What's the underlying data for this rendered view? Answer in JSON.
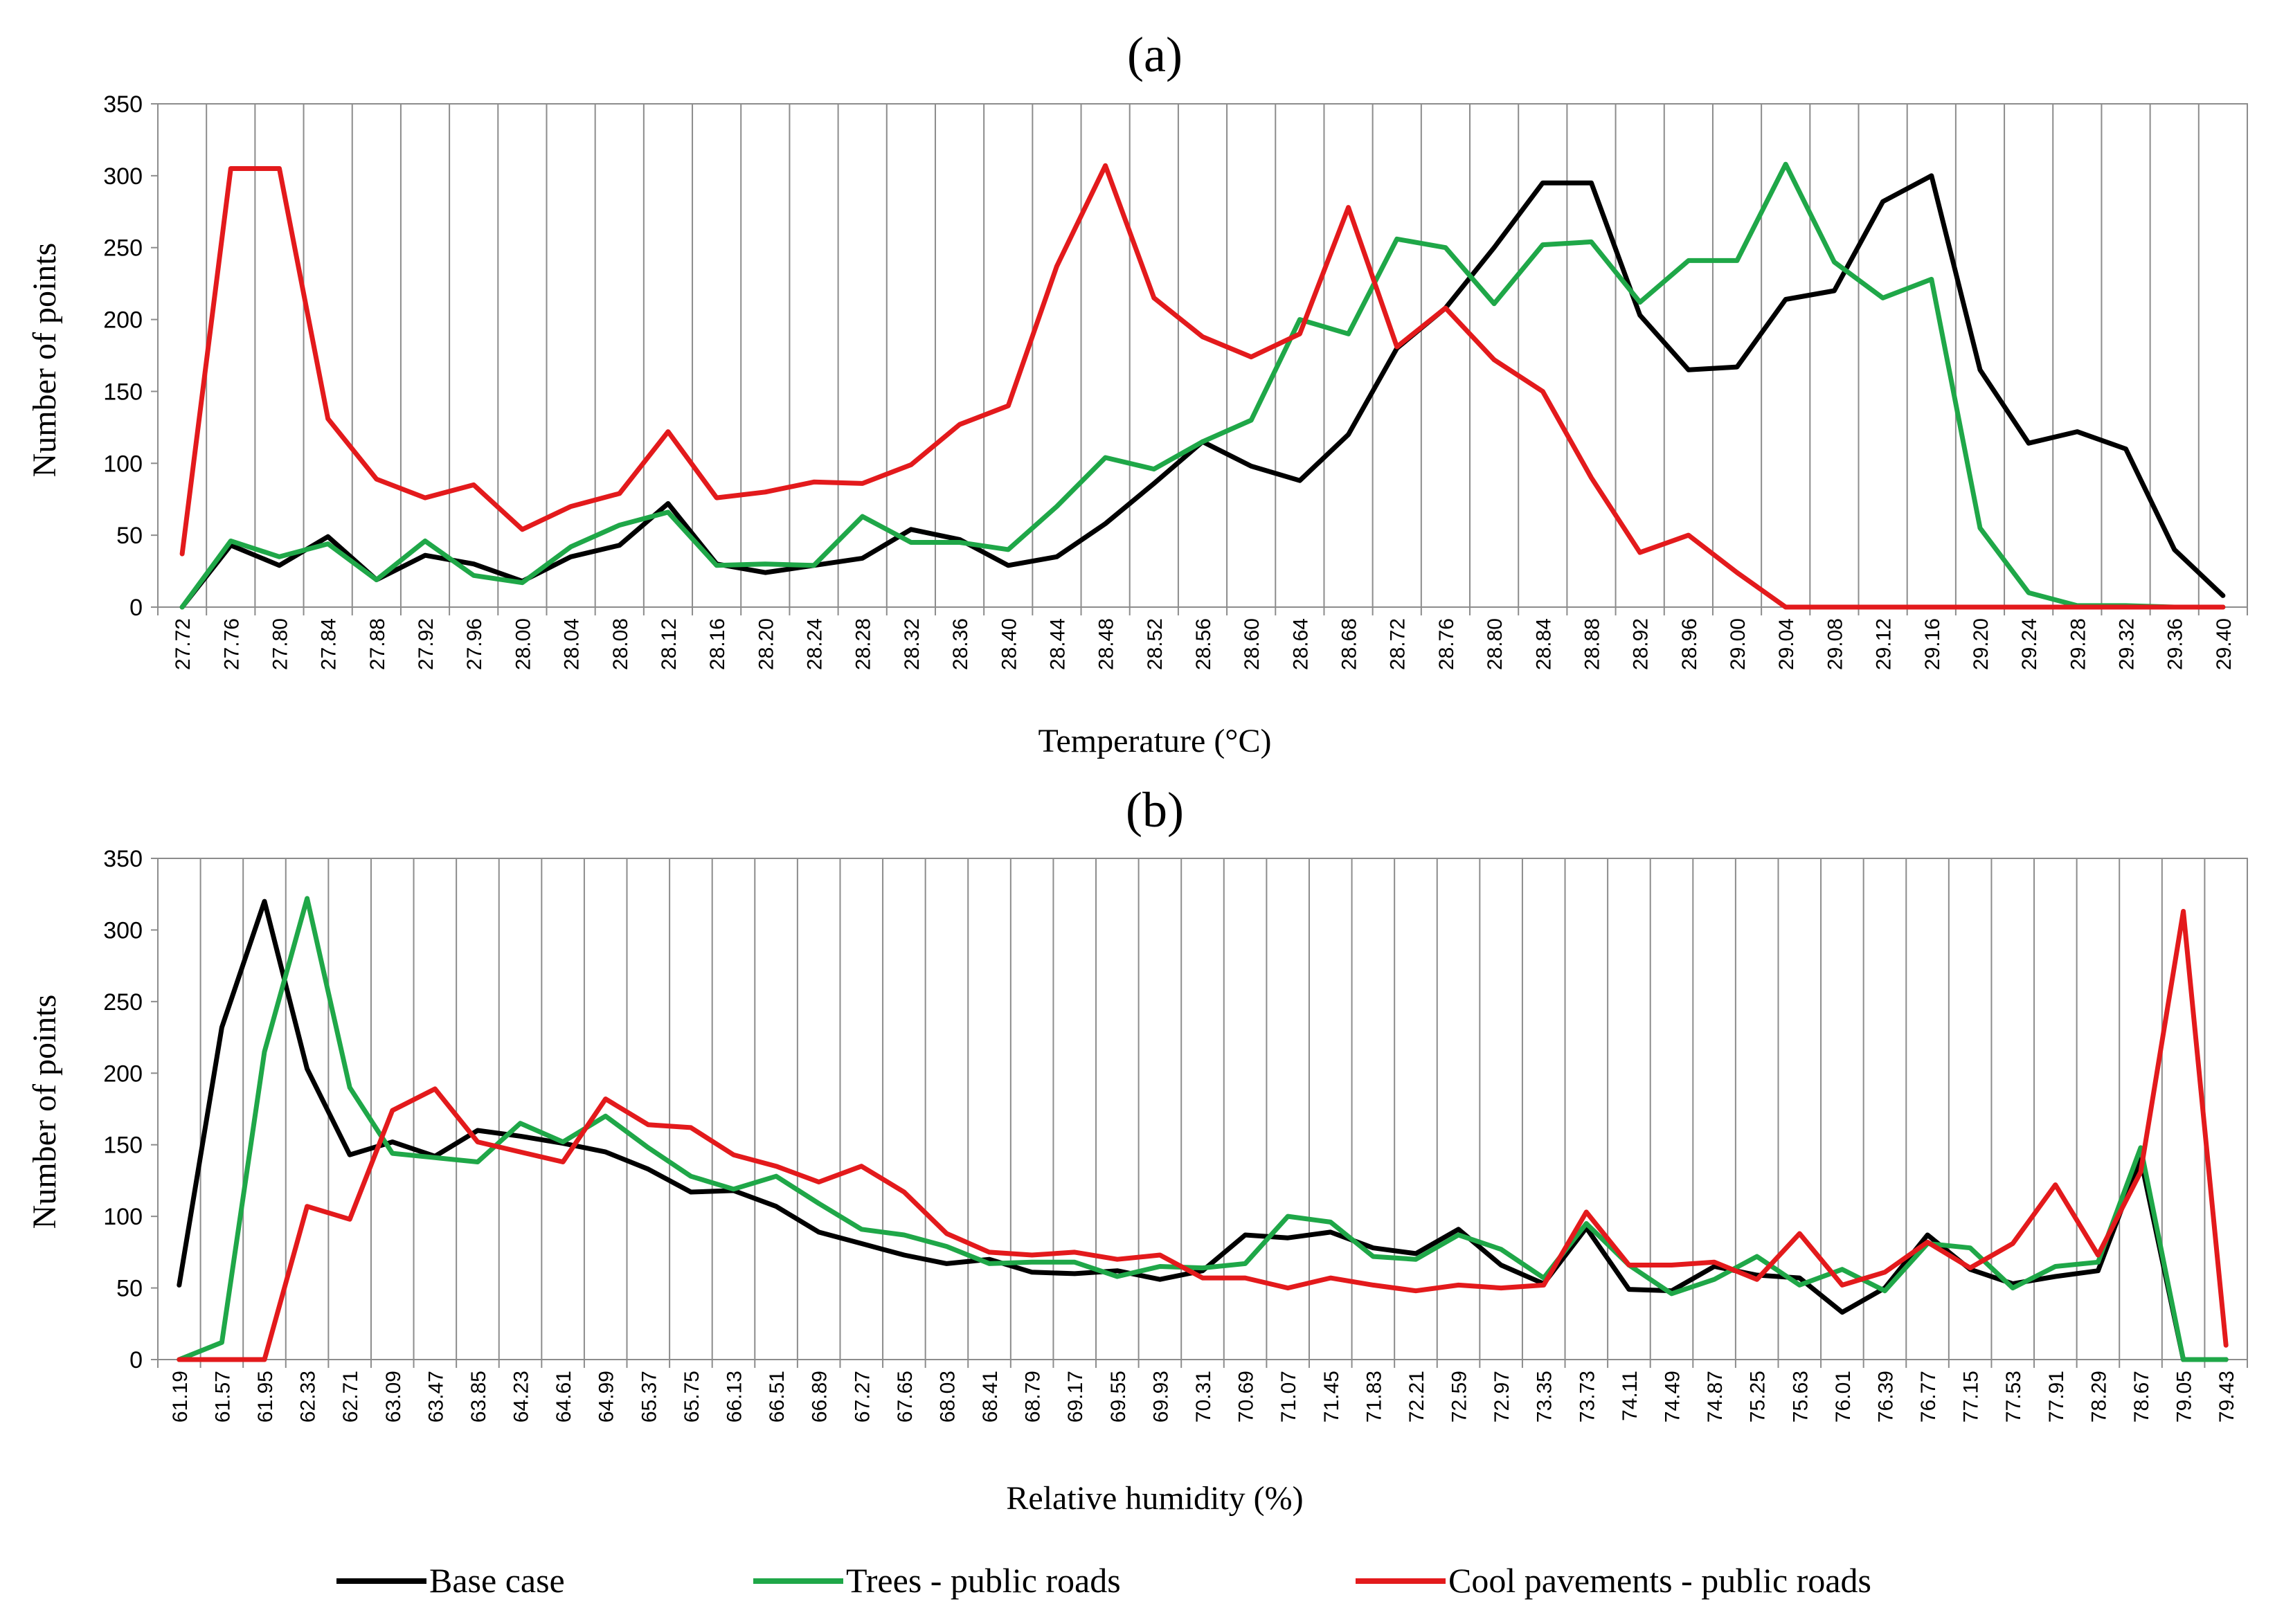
{
  "chart_data": [
    {
      "type": "line",
      "title": "(a)",
      "xlabel": "Temperature (°C)",
      "ylabel": "Number of points",
      "ylim": [
        0,
        350
      ],
      "yticks": [
        "0",
        "50",
        "100",
        "150",
        "200",
        "250",
        "300",
        "350"
      ],
      "categories": [
        "27.72",
        "27.76",
        "27.80",
        "27.84",
        "27.88",
        "27.92",
        "27.96",
        "28.00",
        "28.04",
        "28.08",
        "28.12",
        "28.16",
        "28.20",
        "28.24",
        "28.28",
        "28.32",
        "28.36",
        "28.40",
        "28.44",
        "28.48",
        "28.52",
        "28.56",
        "28.60",
        "28.64",
        "28.68",
        "28.72",
        "28.76",
        "28.80",
        "28.84",
        "28.88",
        "28.92",
        "28.96",
        "29.00",
        "29.04",
        "29.08",
        "29.12",
        "29.16",
        "29.20",
        "29.24",
        "29.28",
        "29.32",
        "29.36",
        "29.40"
      ],
      "series": [
        {
          "name": "Base case",
          "color": "#000000",
          "values": [
            0,
            43,
            29,
            49,
            19,
            36,
            30,
            18,
            35,
            43,
            72,
            30,
            24,
            29,
            34,
            54,
            47,
            29,
            35,
            58,
            86,
            115,
            98,
            88,
            120,
            180,
            208,
            250,
            295,
            295,
            203,
            165,
            167,
            214,
            220,
            282,
            300,
            165,
            114,
            122,
            110,
            40,
            8
          ]
        },
        {
          "name": "Trees - public roads",
          "color": "#1fa748",
          "values": [
            0,
            46,
            35,
            44,
            19,
            46,
            22,
            17,
            42,
            57,
            66,
            29,
            30,
            29,
            63,
            45,
            45,
            40,
            70,
            104,
            96,
            115,
            130,
            200,
            190,
            256,
            250,
            211,
            252,
            254,
            212,
            241,
            241,
            308,
            240,
            215,
            228,
            55,
            10,
            1,
            1,
            0,
            0
          ]
        },
        {
          "name": "Cool pavements - public roads",
          "color": "#e31a1c",
          "values": [
            37,
            305,
            305,
            131,
            89,
            76,
            85,
            54,
            70,
            79,
            122,
            76,
            80,
            87,
            86,
            99,
            127,
            140,
            237,
            307,
            215,
            188,
            174,
            190,
            278,
            181,
            208,
            172,
            150,
            90,
            38,
            50,
            24,
            0,
            0,
            0,
            0,
            0,
            0,
            0,
            0,
            0,
            0
          ]
        }
      ]
    },
    {
      "type": "line",
      "title": "(b)",
      "xlabel": "Relative humidity (%)",
      "ylabel": "Number of points",
      "ylim": [
        0,
        350
      ],
      "yticks": [
        "0",
        "50",
        "100",
        "150",
        "200",
        "250",
        "300",
        "350"
      ],
      "categories": [
        "61.19",
        "61.57",
        "61.95",
        "62.33",
        "62.71",
        "63.09",
        "63.47",
        "63.85",
        "64.23",
        "64.61",
        "64.99",
        "65.37",
        "65.75",
        "66.13",
        "66.51",
        "66.89",
        "67.27",
        "67.65",
        "68.03",
        "68.41",
        "68.79",
        "69.17",
        "69.55",
        "69.93",
        "70.31",
        "70.69",
        "71.07",
        "71.45",
        "71.83",
        "72.21",
        "72.59",
        "72.97",
        "73.35",
        "73.73",
        "74.11",
        "74.49",
        "74.87",
        "75.25",
        "75.63",
        "76.01",
        "76.39",
        "76.77",
        "77.15",
        "77.53",
        "77.91",
        "78.29",
        "78.67",
        "79.05",
        "79.43"
      ],
      "series": [
        {
          "name": "Base case",
          "color": "#000000",
          "values": [
            52,
            232,
            320,
            203,
            143,
            152,
            142,
            160,
            156,
            151,
            145,
            133,
            117,
            118,
            107,
            89,
            81,
            73,
            67,
            70,
            61,
            60,
            62,
            56,
            62,
            87,
            85,
            89,
            78,
            74,
            91,
            66,
            53,
            92,
            49,
            48,
            65,
            59,
            57,
            33,
            50,
            87,
            63,
            53,
            58,
            62,
            140,
            0,
            0
          ]
        },
        {
          "name": "Trees - public roads",
          "color": "#1fa748",
          "values": [
            0,
            12,
            215,
            322,
            190,
            144,
            141,
            138,
            165,
            152,
            170,
            148,
            128,
            119,
            128,
            109,
            91,
            87,
            79,
            67,
            68,
            68,
            58,
            65,
            64,
            67,
            100,
            96,
            72,
            70,
            87,
            77,
            57,
            95,
            66,
            46,
            56,
            72,
            52,
            63,
            48,
            81,
            78,
            50,
            65,
            68,
            148,
            0,
            0
          ]
        },
        {
          "name": "Cool pavements - public roads",
          "color": "#e31a1c",
          "values": [
            0,
            0,
            0,
            107,
            98,
            174,
            189,
            152,
            145,
            138,
            182,
            164,
            162,
            143,
            135,
            124,
            135,
            117,
            88,
            75,
            73,
            75,
            70,
            73,
            57,
            57,
            50,
            57,
            52,
            48,
            52,
            50,
            52,
            103,
            66,
            66,
            68,
            56,
            88,
            52,
            61,
            82,
            64,
            81,
            122,
            73,
            131,
            313,
            10
          ]
        }
      ]
    }
  ],
  "legend": [
    {
      "label": "Base case",
      "color": "#000000"
    },
    {
      "label": "Trees - public roads",
      "color": "#1fa748"
    },
    {
      "label": "Cool pavements - public roads",
      "color": "#e31a1c"
    }
  ]
}
